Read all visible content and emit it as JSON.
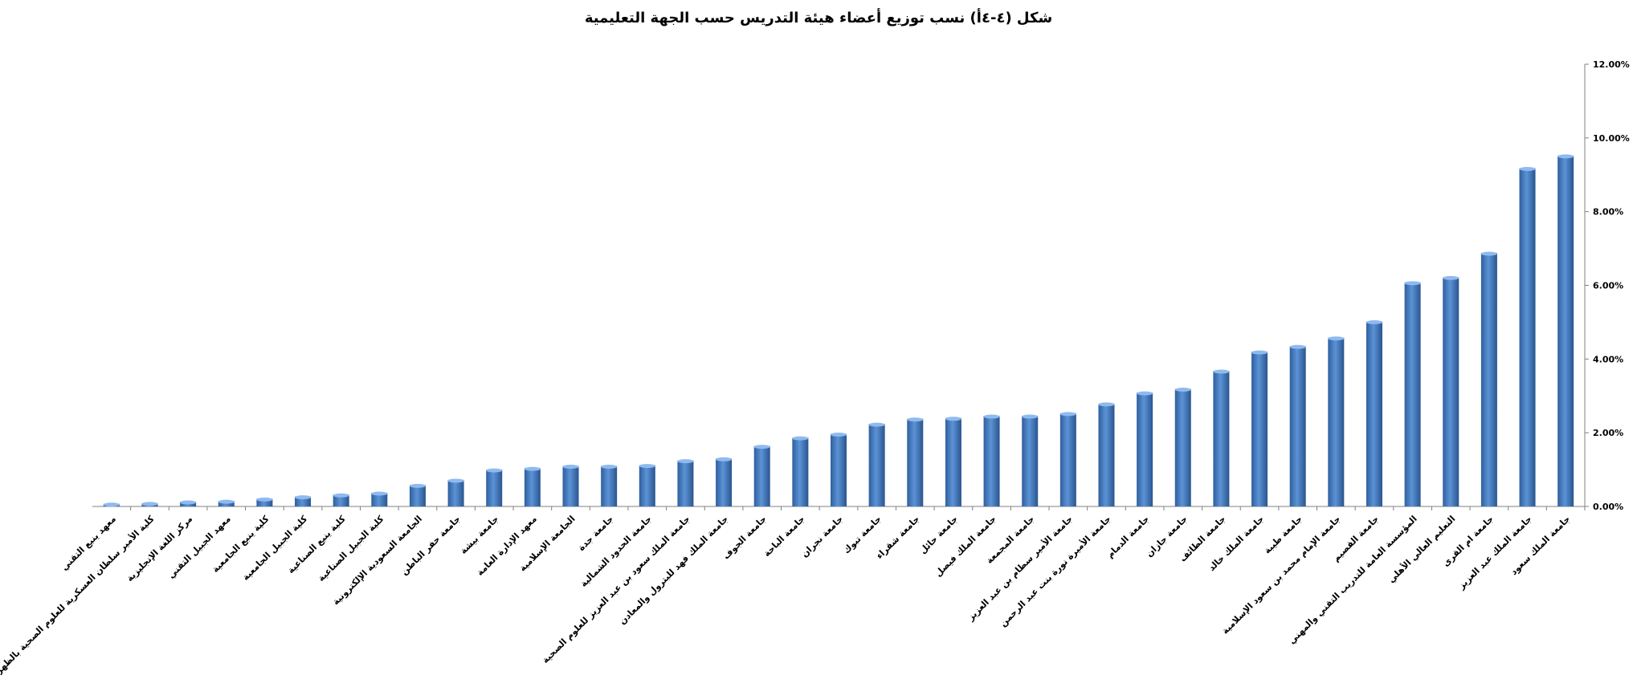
{
  "chart_data": {
    "type": "bar",
    "title": "شكل (٤-٤أ) نسب توزيع أعضاء هيئة التدريس حسب الجهة التعليمية",
    "xlabel": "",
    "ylabel": "",
    "ylim": [
      0,
      12
    ],
    "y_ticks": [
      "0.00%",
      "2.00%",
      "4.00%",
      "6.00%",
      "8.00%",
      "10.00%",
      "12.00%"
    ],
    "y_axis_position": "right",
    "grid": false,
    "bar_color": "#4f86cc",
    "categories": [
      "جامعة الملك سعود",
      "جامعة الملك عبد العزيز",
      "جامعة ام القرى",
      "التعليم العالي الأهلي",
      "المؤسسة العامة للتدريب التقني والمهني",
      "جامعة القصيم",
      "جامعة الإمام محمد بن سعود الإسلامية",
      "جامعة طيبة",
      "جامعة الملك خالد",
      "جامعة الطائف",
      "جامعة جازان",
      "جامعة الدمام",
      "جامعة الأميرة نورة بنت عبد الرحمن",
      "جامعة الأمير سطام بن عبد العزيز",
      "جامعة المجمعة",
      "جامعة الملك فيصل",
      "جامعة حائل",
      "جامعة شقراء",
      "جامعة تبوك",
      "جامعة نجران",
      "جامعة الباحة",
      "جامعة الجوف",
      "جامعة الملك فهد للبترول والمعادن",
      "جامعة الملك سعود بن عبد العزيز للعلوم الصحية",
      "جامعة الحدود الشمالية",
      "جامعة جدة",
      "الجامعة الإسلامية",
      "معهد الإدارة العامة",
      "جامعة بيشة",
      "جامعة حفر الباطن",
      "الجامعة السعودية الإلكترونية",
      "كلية الجبيل الصناعية",
      "كلية ينبع الصناعية",
      "كلية الجبيل الجامعية",
      "كلية ينبع الجامعية",
      "معهد الجبيل التقني",
      "مركز اللغة الإنجليزية",
      "كلية الأمير سلطان العسكرية للعلوم الصحية بالظهران",
      "معهد ينبع التقني"
    ],
    "values": [
      9.52,
      9.18,
      6.88,
      6.22,
      6.08,
      5.02,
      4.58,
      4.35,
      4.2,
      3.68,
      3.19,
      3.09,
      2.79,
      2.53,
      2.46,
      2.46,
      2.4,
      2.38,
      2.24,
      1.97,
      1.87,
      1.64,
      1.3,
      1.25,
      1.12,
      1.1,
      1.1,
      1.04,
      1.0,
      0.72,
      0.58,
      0.37,
      0.32,
      0.27,
      0.21,
      0.15,
      0.13,
      0.09,
      0.07
    ]
  }
}
